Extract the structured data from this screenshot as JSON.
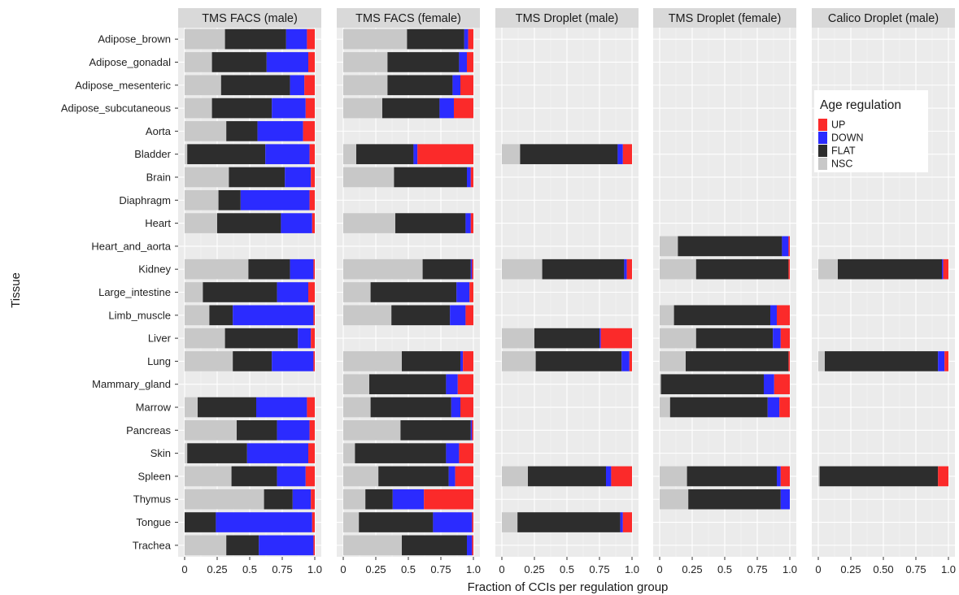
{
  "chart_data": {
    "type": "bar",
    "orientation": "horizontal",
    "stacked": true,
    "xlabel": "Fraction of CCIs per regulation group",
    "ylabel": "Tissue",
    "xlim": [
      0,
      1
    ],
    "x_ticks": [
      "0",
      "0.25",
      "0.5",
      "0.75",
      "1.0"
    ],
    "x_ticks_wide": [
      "0",
      "0.25",
      "0.50",
      "0.75",
      "1.0"
    ],
    "categories": [
      "Adipose_brown",
      "Adipose_gonadal",
      "Adipose_mesenteric",
      "Adipose_subcutaneous",
      "Aorta",
      "Bladder",
      "Brain",
      "Diaphragm",
      "Heart",
      "Heart_and_aorta",
      "Kidney",
      "Large_intestine",
      "Limb_muscle",
      "Liver",
      "Lung",
      "Mammary_gland",
      "Marrow",
      "Pancreas",
      "Skin",
      "Spleen",
      "Thymus",
      "Tongue",
      "Trachea"
    ],
    "legend": {
      "title": "Age regulation",
      "placement": "top-right",
      "items": [
        {
          "label": "UP",
          "color": "#fb2a2a"
        },
        {
          "label": "DOWN",
          "color": "#2b2bff"
        },
        {
          "label": "FLAT",
          "color": "#2d2d2d"
        },
        {
          "label": "NSC",
          "color": "#c8c8c8"
        }
      ]
    },
    "stack_order": [
      "NSC",
      "FLAT",
      "DOWN",
      "UP"
    ],
    "colors": {
      "NSC": "#c8c8c8",
      "FLAT": "#2d2d2d",
      "DOWN": "#2b2bff",
      "UP": "#fb2a2a"
    },
    "grid": true,
    "panels": [
      {
        "title": "TMS FACS (male)",
        "tick_style": "narrow",
        "bars": {
          "Adipose_brown": [
            0.31,
            0.47,
            0.16,
            0.06
          ],
          "Adipose_gonadal": [
            0.21,
            0.42,
            0.32,
            0.05
          ],
          "Adipose_mesenteric": [
            0.28,
            0.53,
            0.11,
            0.08
          ],
          "Adipose_subcutaneous": [
            0.21,
            0.46,
            0.26,
            0.07
          ],
          "Aorta": [
            0.32,
            0.24,
            0.35,
            0.09
          ],
          "Bladder": [
            0.02,
            0.6,
            0.34,
            0.04
          ],
          "Brain": [
            0.34,
            0.43,
            0.2,
            0.03
          ],
          "Diaphragm": [
            0.26,
            0.17,
            0.53,
            0.04
          ],
          "Heart": [
            0.25,
            0.49,
            0.24,
            0.02
          ],
          "Kidney": [
            0.49,
            0.32,
            0.18,
            0.01
          ],
          "Large_intestine": [
            0.14,
            0.57,
            0.24,
            0.05
          ],
          "Limb_muscle": [
            0.19,
            0.18,
            0.62,
            0.01
          ],
          "Liver": [
            0.31,
            0.56,
            0.1,
            0.03
          ],
          "Lung": [
            0.37,
            0.3,
            0.32,
            0.01
          ],
          "Marrow": [
            0.1,
            0.45,
            0.39,
            0.06
          ],
          "Pancreas": [
            0.4,
            0.31,
            0.25,
            0.04
          ],
          "Skin": [
            0.02,
            0.46,
            0.47,
            0.05
          ],
          "Spleen": [
            0.36,
            0.35,
            0.22,
            0.07
          ],
          "Thymus": [
            0.61,
            0.22,
            0.14,
            0.03
          ],
          "Tongue": [
            0.0,
            0.24,
            0.74,
            0.02
          ],
          "Trachea": [
            0.32,
            0.25,
            0.42,
            0.01
          ]
        }
      },
      {
        "title": "TMS FACS (female)",
        "tick_style": "narrow",
        "bars": {
          "Adipose_brown": [
            0.49,
            0.44,
            0.03,
            0.04
          ],
          "Adipose_gonadal": [
            0.34,
            0.55,
            0.06,
            0.05
          ],
          "Adipose_mesenteric": [
            0.34,
            0.5,
            0.06,
            0.1
          ],
          "Adipose_subcutaneous": [
            0.3,
            0.44,
            0.11,
            0.15
          ],
          "Bladder": [
            0.1,
            0.44,
            0.03,
            0.43
          ],
          "Brain": [
            0.39,
            0.56,
            0.03,
            0.02
          ],
          "Heart": [
            0.4,
            0.54,
            0.04,
            0.02
          ],
          "Kidney": [
            0.61,
            0.37,
            0.01,
            0.01
          ],
          "Large_intestine": [
            0.21,
            0.66,
            0.1,
            0.03
          ],
          "Limb_muscle": [
            0.37,
            0.45,
            0.12,
            0.06
          ],
          "Lung": [
            0.45,
            0.45,
            0.02,
            0.08
          ],
          "Mammary_gland": [
            0.2,
            0.59,
            0.09,
            0.12
          ],
          "Marrow": [
            0.21,
            0.62,
            0.07,
            0.1
          ],
          "Pancreas": [
            0.44,
            0.54,
            0.01,
            0.01
          ],
          "Skin": [
            0.09,
            0.7,
            0.1,
            0.11
          ],
          "Spleen": [
            0.27,
            0.54,
            0.05,
            0.14
          ],
          "Thymus": [
            0.17,
            0.21,
            0.24,
            0.38
          ],
          "Tongue": [
            0.12,
            0.57,
            0.3,
            0.01
          ],
          "Trachea": [
            0.45,
            0.5,
            0.04,
            0.01
          ]
        }
      },
      {
        "title": "TMS Droplet (male)",
        "tick_style": "narrow",
        "bars": {
          "Bladder": [
            0.14,
            0.75,
            0.04,
            0.07
          ],
          "Kidney": [
            0.31,
            0.63,
            0.02,
            0.04
          ],
          "Liver": [
            0.25,
            0.5,
            0.01,
            0.24
          ],
          "Lung": [
            0.26,
            0.66,
            0.06,
            0.02
          ],
          "Spleen": [
            0.2,
            0.6,
            0.04,
            0.16
          ],
          "Tongue": [
            0.12,
            0.79,
            0.02,
            0.07
          ]
        }
      },
      {
        "title": "TMS Droplet (female)",
        "tick_style": "narrow",
        "bars": {
          "Heart_and_aorta": [
            0.14,
            0.8,
            0.05,
            0.01
          ],
          "Kidney": [
            0.28,
            0.71,
            0.0,
            0.01
          ],
          "Limb_muscle": [
            0.11,
            0.74,
            0.05,
            0.1
          ],
          "Liver": [
            0.28,
            0.59,
            0.06,
            0.07
          ],
          "Lung": [
            0.2,
            0.79,
            0.0,
            0.01
          ],
          "Mammary_gland": [
            0.01,
            0.79,
            0.08,
            0.12
          ],
          "Marrow": [
            0.08,
            0.75,
            0.09,
            0.08
          ],
          "Spleen": [
            0.21,
            0.69,
            0.03,
            0.07
          ],
          "Thymus": [
            0.22,
            0.71,
            0.07,
            0.0
          ]
        }
      },
      {
        "title": "Calico Droplet (male)",
        "tick_style": "wide",
        "bars": {
          "Kidney": [
            0.15,
            0.8,
            0.01,
            0.04
          ],
          "Lung": [
            0.05,
            0.87,
            0.05,
            0.03
          ],
          "Spleen": [
            0.01,
            0.91,
            0.0,
            0.08
          ]
        }
      }
    ]
  }
}
